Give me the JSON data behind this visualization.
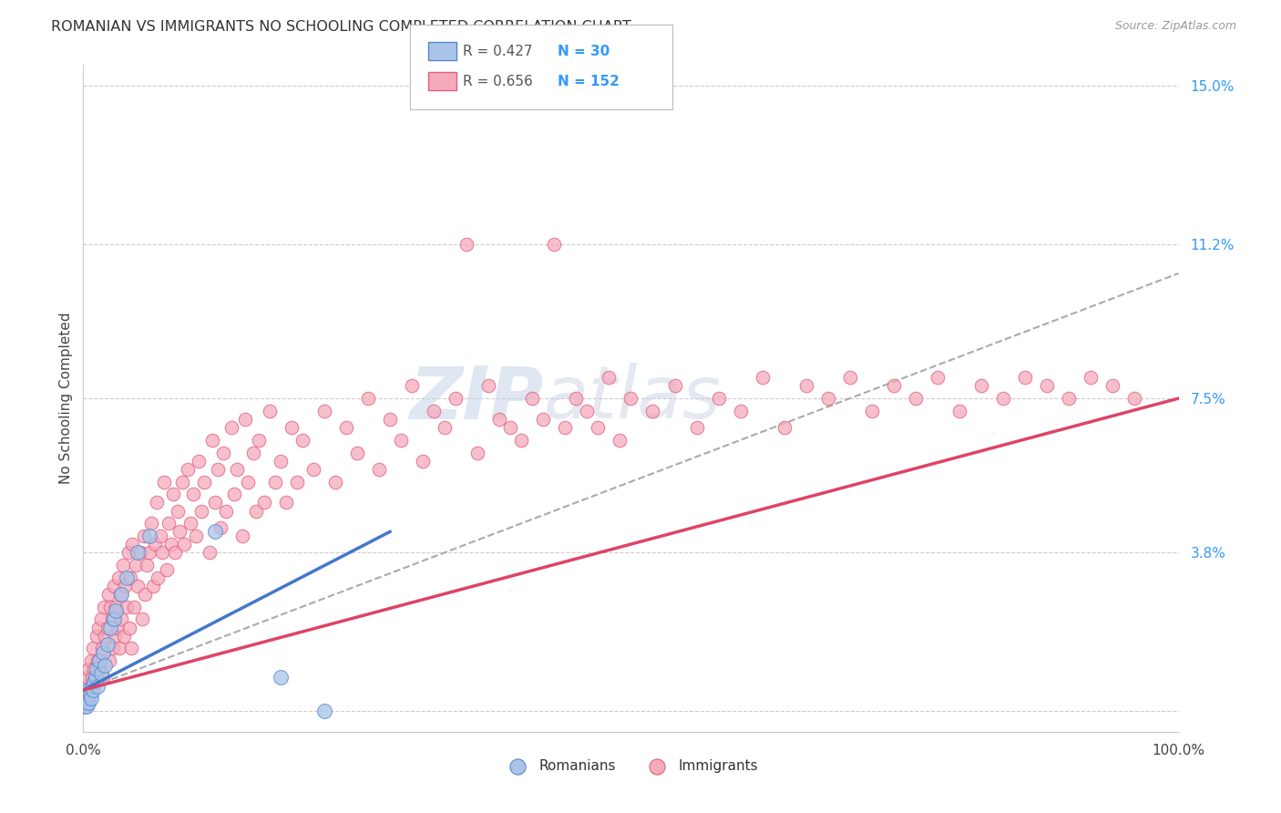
{
  "title": "ROMANIAN VS IMMIGRANTS NO SCHOOLING COMPLETED CORRELATION CHART",
  "source": "Source: ZipAtlas.com",
  "ylabel": "No Schooling Completed",
  "xlim": [
    0,
    1.0
  ],
  "ylim": [
    -0.005,
    0.155
  ],
  "yticks": [
    0.0,
    0.038,
    0.075,
    0.112,
    0.15
  ],
  "ytick_labels": [
    "",
    "3.8%",
    "7.5%",
    "11.2%",
    "15.0%"
  ],
  "xtick_labels": [
    "0.0%",
    "100.0%"
  ],
  "background_color": "#ffffff",
  "grid_color": "#cccccc",
  "romanian_color": "#aac4e8",
  "immigrant_color": "#f5aabb",
  "romanian_edge_color": "#5588cc",
  "immigrant_edge_color": "#e06080",
  "romanian_line_color": "#4477cc",
  "immigrant_line_color": "#dd4466",
  "trendline_color": "#aaaaaa",
  "r_color": "#555555",
  "n_color": "#3399ff",
  "legend_r1": "R = 0.427",
  "legend_n1": "N = 30",
  "legend_r2": "R = 0.656",
  "legend_n2": "N = 152",
  "watermark_zip": "ZIP",
  "watermark_atlas": "atlas",
  "romanians_label": "Romanians",
  "immigrants_label": "Immigrants",
  "rom_x": [
    0.001,
    0.002,
    0.003,
    0.003,
    0.004,
    0.005,
    0.005,
    0.006,
    0.007,
    0.008,
    0.009,
    0.01,
    0.011,
    0.012,
    0.013,
    0.015,
    0.016,
    0.018,
    0.02,
    0.022,
    0.025,
    0.028,
    0.03,
    0.035,
    0.04,
    0.05,
    0.06,
    0.12,
    0.18,
    0.22
  ],
  "rom_y": [
    0.001,
    0.002,
    0.001,
    0.004,
    0.003,
    0.002,
    0.005,
    0.004,
    0.003,
    0.006,
    0.005,
    0.007,
    0.008,
    0.01,
    0.006,
    0.012,
    0.009,
    0.014,
    0.011,
    0.016,
    0.02,
    0.022,
    0.024,
    0.028,
    0.032,
    0.038,
    0.042,
    0.043,
    0.008,
    0.0
  ],
  "imm_x": [
    0.001,
    0.002,
    0.003,
    0.004,
    0.005,
    0.006,
    0.007,
    0.008,
    0.009,
    0.01,
    0.012,
    0.013,
    0.014,
    0.015,
    0.016,
    0.017,
    0.018,
    0.019,
    0.02,
    0.022,
    0.023,
    0.024,
    0.025,
    0.026,
    0.027,
    0.028,
    0.029,
    0.03,
    0.031,
    0.032,
    0.033,
    0.034,
    0.035,
    0.036,
    0.037,
    0.038,
    0.04,
    0.041,
    0.042,
    0.043,
    0.044,
    0.045,
    0.046,
    0.048,
    0.05,
    0.052,
    0.054,
    0.055,
    0.056,
    0.058,
    0.06,
    0.062,
    0.064,
    0.065,
    0.067,
    0.068,
    0.07,
    0.072,
    0.074,
    0.076,
    0.078,
    0.08,
    0.082,
    0.084,
    0.086,
    0.088,
    0.09,
    0.092,
    0.095,
    0.098,
    0.1,
    0.103,
    0.105,
    0.108,
    0.11,
    0.115,
    0.118,
    0.12,
    0.123,
    0.125,
    0.128,
    0.13,
    0.135,
    0.138,
    0.14,
    0.145,
    0.148,
    0.15,
    0.155,
    0.158,
    0.16,
    0.165,
    0.17,
    0.175,
    0.18,
    0.185,
    0.19,
    0.195,
    0.2,
    0.21,
    0.22,
    0.23,
    0.24,
    0.25,
    0.26,
    0.27,
    0.28,
    0.29,
    0.3,
    0.31,
    0.32,
    0.33,
    0.34,
    0.35,
    0.36,
    0.37,
    0.38,
    0.39,
    0.4,
    0.41,
    0.42,
    0.43,
    0.44,
    0.45,
    0.46,
    0.47,
    0.48,
    0.49,
    0.5,
    0.52,
    0.54,
    0.56,
    0.58,
    0.6,
    0.62,
    0.64,
    0.66,
    0.68,
    0.7,
    0.72,
    0.74,
    0.76,
    0.78,
    0.8,
    0.82,
    0.84,
    0.86,
    0.88,
    0.9,
    0.92,
    0.94,
    0.96
  ],
  "imm_y": [
    0.002,
    0.004,
    0.006,
    0.008,
    0.01,
    0.005,
    0.012,
    0.008,
    0.015,
    0.01,
    0.018,
    0.012,
    0.02,
    0.01,
    0.022,
    0.015,
    0.008,
    0.025,
    0.018,
    0.02,
    0.028,
    0.012,
    0.025,
    0.022,
    0.015,
    0.03,
    0.018,
    0.025,
    0.02,
    0.032,
    0.015,
    0.028,
    0.022,
    0.035,
    0.018,
    0.03,
    0.025,
    0.038,
    0.02,
    0.032,
    0.015,
    0.04,
    0.025,
    0.035,
    0.03,
    0.038,
    0.022,
    0.042,
    0.028,
    0.035,
    0.038,
    0.045,
    0.03,
    0.04,
    0.05,
    0.032,
    0.042,
    0.038,
    0.055,
    0.034,
    0.045,
    0.04,
    0.052,
    0.038,
    0.048,
    0.043,
    0.055,
    0.04,
    0.058,
    0.045,
    0.052,
    0.042,
    0.06,
    0.048,
    0.055,
    0.038,
    0.065,
    0.05,
    0.058,
    0.044,
    0.062,
    0.048,
    0.068,
    0.052,
    0.058,
    0.042,
    0.07,
    0.055,
    0.062,
    0.048,
    0.065,
    0.05,
    0.072,
    0.055,
    0.06,
    0.05,
    0.068,
    0.055,
    0.065,
    0.058,
    0.072,
    0.055,
    0.068,
    0.062,
    0.075,
    0.058,
    0.07,
    0.065,
    0.078,
    0.06,
    0.072,
    0.068,
    0.075,
    0.112,
    0.062,
    0.078,
    0.07,
    0.068,
    0.065,
    0.075,
    0.07,
    0.112,
    0.068,
    0.075,
    0.072,
    0.068,
    0.08,
    0.065,
    0.075,
    0.072,
    0.078,
    0.068,
    0.075,
    0.072,
    0.08,
    0.068,
    0.078,
    0.075,
    0.08,
    0.072,
    0.078,
    0.075,
    0.08,
    0.072,
    0.078,
    0.075,
    0.08,
    0.078,
    0.075,
    0.08,
    0.078,
    0.075
  ],
  "imm_line_x": [
    0.0,
    1.0
  ],
  "imm_line_y": [
    0.005,
    0.075
  ],
  "rom_line_x": [
    0.0,
    0.28
  ],
  "rom_line_y": [
    0.005,
    0.043
  ],
  "dash_line_x": [
    0.0,
    1.0
  ],
  "dash_line_y": [
    0.005,
    0.105
  ]
}
